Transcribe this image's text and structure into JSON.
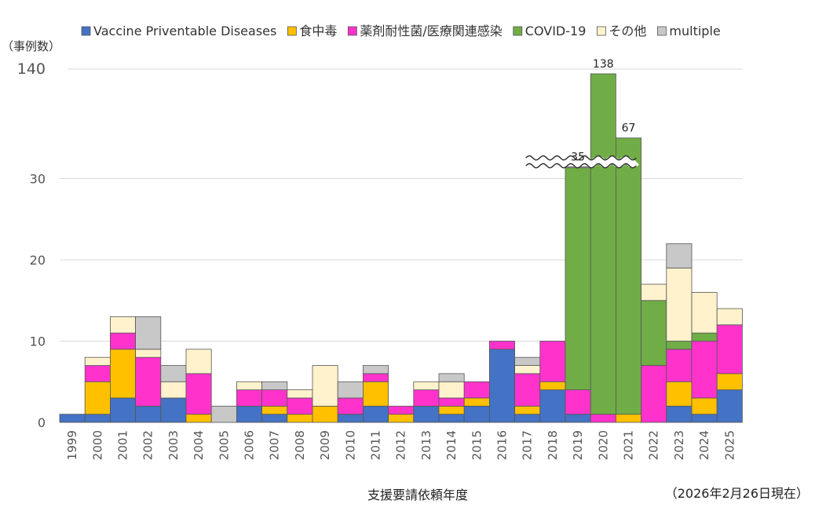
{
  "chart_data": {
    "type": "bar",
    "stacked": true,
    "title": "",
    "ylabel": "（事例数）",
    "xlabel": "支援要請依頼年度",
    "note": "（2026年2月26日現在）",
    "ylim": [
      0,
      40
    ],
    "yticks": [
      "0",
      "10",
      "20",
      "30",
      "140"
    ],
    "axis_break": true,
    "grid": true,
    "legend_position": "top",
    "categories": [
      "1999",
      "2000",
      "2001",
      "2002",
      "2003",
      "2004",
      "2005",
      "2006",
      "2007",
      "2008",
      "2009",
      "2010",
      "2011",
      "2012",
      "2013",
      "2014",
      "2015",
      "2016",
      "2017",
      "2018",
      "2019",
      "2020",
      "2021",
      "2022",
      "2023",
      "2024",
      "2025"
    ],
    "series": [
      {
        "name": "Vaccine Priventable Diseases",
        "color": "#4472C4",
        "values": [
          1,
          1,
          3,
          2,
          3,
          0,
          0,
          2,
          1,
          0,
          0,
          1,
          2,
          0,
          2,
          1,
          2,
          9,
          1,
          4,
          1,
          0,
          0,
          0,
          2,
          1,
          4
        ]
      },
      {
        "name": "食中毒",
        "color": "#FFC000",
        "values": [
          0,
          4,
          6,
          0,
          0,
          1,
          0,
          0,
          1,
          1,
          2,
          0,
          3,
          1,
          0,
          1,
          1,
          0,
          1,
          1,
          0,
          0,
          1,
          0,
          3,
          2,
          2
        ]
      },
      {
        "name": "薬剤耐性菌/医療関連感染",
        "color": "#FF33CC",
        "values": [
          0,
          2,
          2,
          6,
          0,
          5,
          0,
          2,
          2,
          2,
          0,
          2,
          1,
          1,
          2,
          1,
          2,
          1,
          4,
          5,
          3,
          1,
          0,
          7,
          4,
          7,
          6
        ]
      },
      {
        "name": "COVID-19",
        "color": "#70AD47",
        "values": [
          0,
          0,
          0,
          0,
          0,
          0,
          0,
          0,
          0,
          0,
          0,
          0,
          0,
          0,
          0,
          0,
          0,
          0,
          0,
          0,
          30,
          137,
          66,
          8,
          1,
          1,
          0
        ]
      },
      {
        "name": "その他",
        "color": "#FFF2CC",
        "values": [
          0,
          1,
          2,
          1,
          2,
          3,
          0,
          1,
          0,
          1,
          5,
          0,
          0,
          0,
          1,
          2,
          0,
          0,
          1,
          0,
          0,
          0,
          0,
          2,
          9,
          5,
          2
        ]
      },
      {
        "name": "multiple",
        "color": "#C8C8C8",
        "values": [
          0,
          0,
          0,
          4,
          2,
          0,
          2,
          0,
          1,
          0,
          0,
          2,
          1,
          0,
          0,
          1,
          0,
          0,
          1,
          0,
          1,
          0,
          0,
          0,
          3,
          0,
          0
        ]
      }
    ],
    "data_labels": [
      {
        "category": "2019",
        "text": "35"
      },
      {
        "category": "2020",
        "text": "138"
      },
      {
        "category": "2021",
        "text": "67"
      }
    ]
  }
}
